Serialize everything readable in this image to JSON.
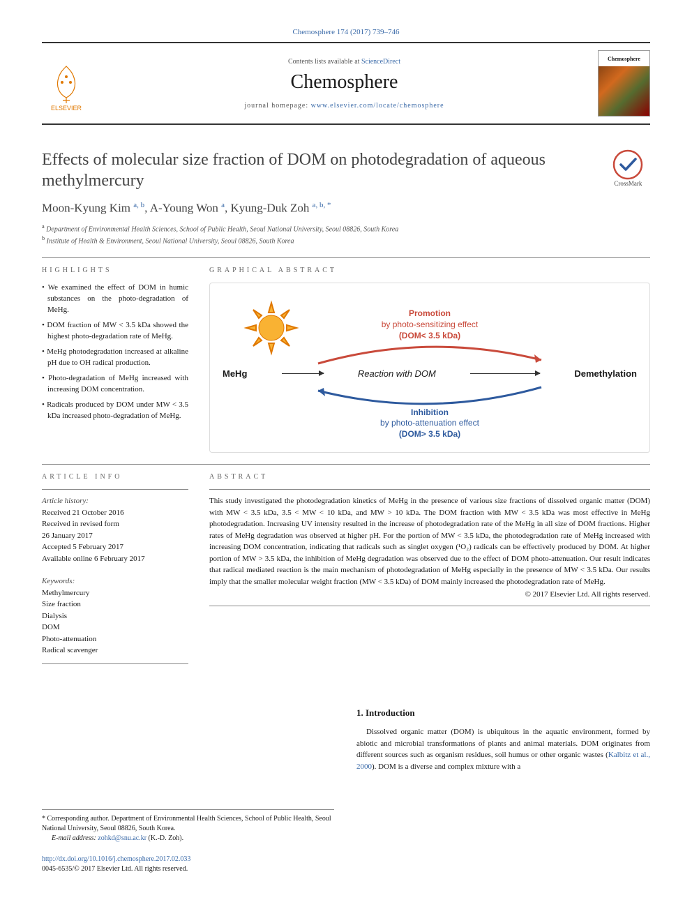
{
  "citation": "Chemosphere 174 (2017) 739–746",
  "header": {
    "contents_prefix": "Contents lists available at ",
    "contents_link": "ScienceDirect",
    "journal": "Chemosphere",
    "homepage_prefix": "journal homepage: ",
    "homepage_url": "www.elsevier.com/locate/chemosphere",
    "publisher_logo_text": "ELSEVIER",
    "thumb_label": "Chemosphere"
  },
  "title": "Effects of molecular size fraction of DOM on photodegradation of aqueous methylmercury",
  "crossmark_label": "CrossMark",
  "authors_html": "Moon-Kyung Kim <sup>a, b</sup>, A-Young Won <sup>a</sup>, Kyung-Duk Zoh <sup>a, b, *</sup>",
  "affiliations": [
    {
      "sup": "a",
      "text": "Department of Environmental Health Sciences, School of Public Health, Seoul National University, Seoul 08826, South Korea"
    },
    {
      "sup": "b",
      "text": "Institute of Health & Environment, Seoul National University, Seoul 08826, South Korea"
    }
  ],
  "labels": {
    "highlights": "HIGHLIGHTS",
    "graphical": "GRAPHICAL ABSTRACT",
    "article_info": "ARTICLE INFO",
    "abstract": "ABSTRACT"
  },
  "highlights": [
    "We examined the effect of DOM in humic substances on the photo-degradation of MeHg.",
    "DOM fraction of MW < 3.5 kDa showed the highest photo-degradation rate of MeHg.",
    "MeHg photodegradation increased at alkaline pH due to OH radical production.",
    "Photo-degradation of MeHg increased with increasing DOM concentration.",
    "Radicals produced by DOM under MW < 3.5 kDa increased photo-degradation of MeHg."
  ],
  "graphical": {
    "promotion_title": "Promotion",
    "promotion_sub": "by photo-sensitizing effect",
    "promotion_dom": "(DOM< 3.5 kDa)",
    "inhibition_title": "Inhibition",
    "inhibition_sub": "by photo-attenuation effect",
    "inhibition_dom": "(DOM> 3.5 kDa)",
    "left_label": "MeHg",
    "center_label": "Reaction with DOM",
    "right_label": "Demethylation",
    "colors": {
      "promotion": "#c94a3b",
      "inhibition": "#2e5a9e",
      "sun_fill": "#f9b233",
      "sun_stroke": "#e07800",
      "border": "#dddddd"
    }
  },
  "article_info": {
    "history_head": "Article history:",
    "history": [
      "Received 21 October 2016",
      "Received in revised form",
      "26 January 2017",
      "Accepted 5 February 2017",
      "Available online 6 February 2017"
    ],
    "keywords_head": "Keywords:",
    "keywords": [
      "Methylmercury",
      "Size fraction",
      "Dialysis",
      "DOM",
      "Photo-attenuation",
      "Radical scavenger"
    ]
  },
  "abstract": "This study investigated the photodegradation kinetics of MeHg in the presence of various size fractions of dissolved organic matter (DOM) with MW < 3.5 kDa, 3.5 < MW < 10 kDa, and MW > 10 kDa. The DOM fraction with MW < 3.5 kDa was most effective in MeHg photodegradation. Increasing UV intensity resulted in the increase of photodegradation rate of the MeHg in all size of DOM fractions. Higher rates of MeHg degradation was observed at higher pH. For the portion of MW < 3.5 kDa, the photodegradation rate of MeHg increased with increasing DOM concentration, indicating that radicals such as singlet oxygen (¹O₂) radicals can be effectively produced by DOM. At higher portion of MW > 3.5 kDa, the inhibition of MeHg degradation was observed due to the effect of DOM photo-attenuation. Our result indicates that radical mediated reaction is the main mechanism of photodegradation of MeHg especially in the presence of MW < 3.5 kDa. Our results imply that the smaller molecular weight fraction (MW < 3.5 kDa) of DOM mainly increased the photodegradation rate of MeHg.",
  "copyright": "© 2017 Elsevier Ltd. All rights reserved.",
  "intro": {
    "heading": "1. Introduction",
    "para1": "Dissolved organic matter (DOM) is ubiquitous in the aquatic environment, formed by abiotic and microbial transformations of plants and animal materials. DOM originates from different sources such as organism residues, soil humus or other organic wastes (",
    "para1_link": "Kalbitz et al., 2000",
    "para1_tail": "). DOM is a diverse and complex mixture with a"
  },
  "footnote": {
    "corr": "* Corresponding author. Department of Environmental Health Sciences, School of Public Health, Seoul National University, Seoul 08826, South Korea.",
    "email_prefix": "E-mail address: ",
    "email": "zohkd@snu.ac.kr",
    "email_suffix": " (K.-D. Zoh)."
  },
  "doi": {
    "url": "http://dx.doi.org/10.1016/j.chemosphere.2017.02.033",
    "issn": "0045-6535/© 2017 Elsevier Ltd. All rights reserved."
  }
}
